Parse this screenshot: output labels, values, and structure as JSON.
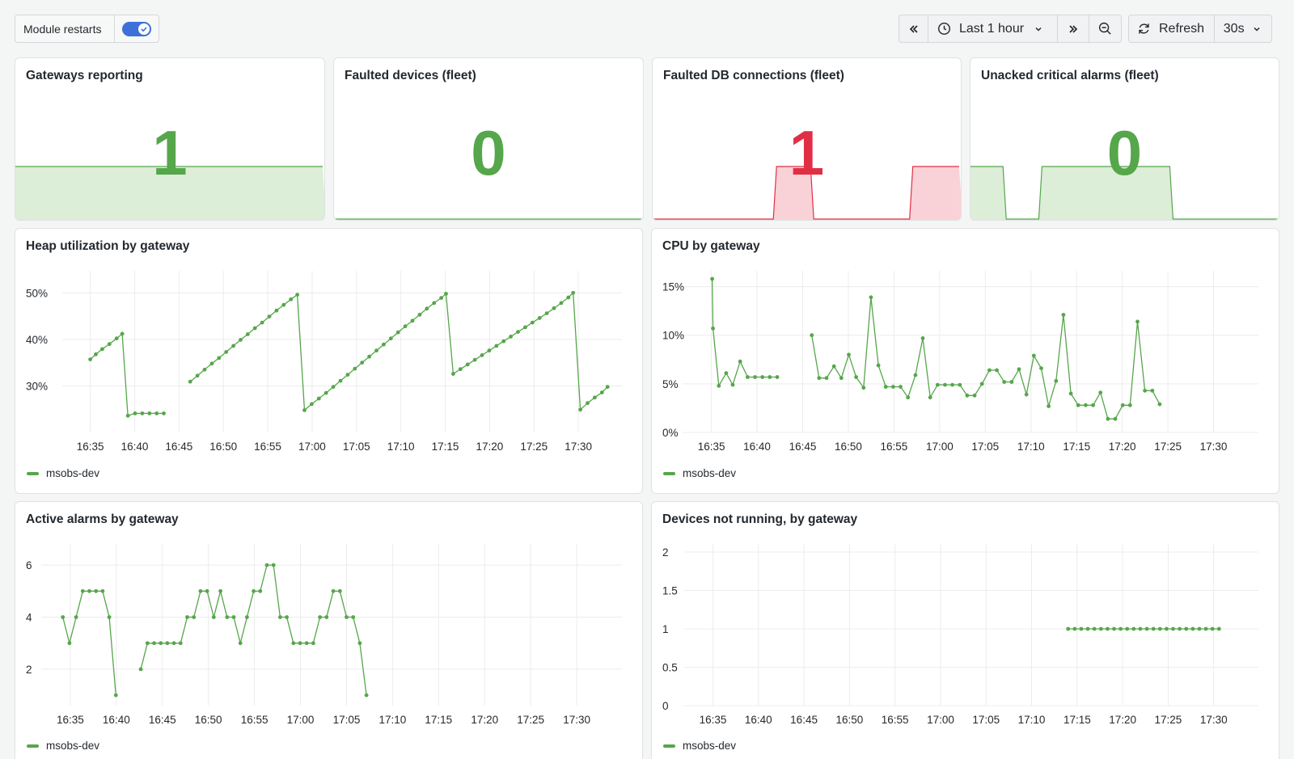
{
  "toolbar": {
    "module_restarts_label": "Module restarts",
    "module_restarts_on": true,
    "time_range_label": "Last 1 hour",
    "refresh_label": "Refresh",
    "refresh_interval": "30s"
  },
  "colors": {
    "green": "#56a64b",
    "red": "#e02f44",
    "green_fill": "#dcedd8",
    "red_fill": "#f9d2d8"
  },
  "stats": [
    {
      "title": "Gateways reporting",
      "value": "1",
      "color": "green",
      "spark": [
        1,
        1,
        1,
        1,
        1,
        1,
        1,
        1,
        1,
        1,
        1,
        1,
        1,
        1,
        1,
        1,
        1,
        1,
        1,
        1
      ]
    },
    {
      "title": "Faulted devices (fleet)",
      "value": "0",
      "color": "green",
      "spark": [
        0,
        0,
        0,
        0,
        0,
        0,
        0,
        0,
        0,
        0,
        0,
        0,
        0,
        0,
        0,
        0,
        0,
        0,
        0,
        0
      ]
    },
    {
      "title": "Faulted DB connections (fleet)",
      "value": "1",
      "color": "red",
      "spark": [
        0,
        0,
        0,
        0,
        0,
        0,
        0,
        0,
        0,
        0,
        1,
        1,
        1,
        0,
        0,
        0,
        0,
        0,
        0,
        0,
        0,
        1,
        1,
        1,
        1
      ]
    },
    {
      "title": "Unacked critical alarms (fleet)",
      "value": "0",
      "color": "green",
      "spark": [
        1,
        1,
        1,
        0,
        0,
        0,
        1,
        1,
        1,
        1,
        1,
        1,
        1,
        1,
        1,
        1,
        1,
        0,
        0,
        0,
        0,
        0,
        0,
        0,
        0,
        0
      ]
    }
  ],
  "chart_data": [
    {
      "type": "line",
      "title": "Heap utilization by gateway",
      "x_ticks": [
        "16:35",
        "16:40",
        "16:45",
        "16:50",
        "16:55",
        "17:00",
        "17:05",
        "17:10",
        "17:15",
        "17:20",
        "17:25",
        "17:30"
      ],
      "y_ticks": [
        "50%",
        "40%",
        "30%"
      ],
      "ylim": [
        20,
        53
      ],
      "series": [
        {
          "name": "msobs-dev",
          "color": "green",
          "segments": [
            [
              [
                33.5,
                35.7
              ],
              [
                34.2,
                36.8
              ],
              [
                35.0,
                37.9
              ],
              [
                35.9,
                39.0
              ],
              [
                36.8,
                40.2
              ],
              [
                37.5,
                41.2
              ],
              [
                38.2,
                23.6
              ],
              [
                39.1,
                24.1
              ],
              [
                40.0,
                24.1
              ],
              [
                40.9,
                24.1
              ],
              [
                41.8,
                24.1
              ],
              [
                42.7,
                24.1
              ]
            ],
            [
              [
                46.0,
                30.9
              ],
              [
                46.9,
                32.2
              ],
              [
                47.8,
                33.5
              ],
              [
                48.7,
                34.8
              ],
              [
                49.6,
                36.0
              ],
              [
                50.5,
                37.3
              ],
              [
                51.4,
                38.6
              ],
              [
                52.3,
                39.9
              ],
              [
                53.2,
                41.1
              ],
              [
                54.1,
                42.4
              ],
              [
                55.0,
                43.6
              ],
              [
                55.9,
                44.9
              ],
              [
                56.8,
                46.2
              ],
              [
                57.7,
                47.4
              ],
              [
                58.6,
                48.6
              ],
              [
                59.4,
                49.6
              ],
              [
                60.3,
                24.8
              ],
              [
                61.2,
                26.1
              ],
              [
                62.1,
                27.3
              ],
              [
                63.0,
                28.5
              ],
              [
                63.9,
                29.8
              ],
              [
                64.8,
                31.1
              ],
              [
                65.7,
                32.4
              ],
              [
                66.6,
                33.7
              ],
              [
                67.5,
                35.0
              ],
              [
                68.4,
                36.3
              ],
              [
                69.3,
                37.6
              ],
              [
                70.2,
                38.9
              ],
              [
                71.1,
                40.2
              ],
              [
                72.0,
                41.5
              ],
              [
                72.9,
                42.8
              ],
              [
                73.8,
                44.0
              ],
              [
                74.7,
                45.3
              ],
              [
                75.6,
                46.6
              ],
              [
                76.5,
                47.8
              ],
              [
                77.4,
                48.9
              ],
              [
                78.0,
                49.8
              ],
              [
                78.9,
                32.6
              ],
              [
                79.8,
                33.6
              ],
              [
                80.7,
                34.6
              ],
              [
                81.6,
                35.6
              ],
              [
                82.5,
                36.6
              ],
              [
                83.4,
                37.6
              ],
              [
                84.3,
                38.6
              ],
              [
                85.2,
                39.6
              ],
              [
                86.1,
                40.6
              ],
              [
                87.0,
                41.6
              ],
              [
                87.9,
                42.6
              ],
              [
                88.8,
                43.6
              ],
              [
                89.7,
                44.6
              ],
              [
                90.6,
                45.6
              ],
              [
                91.5,
                46.7
              ],
              [
                92.4,
                47.8
              ],
              [
                93.3,
                49.0
              ],
              [
                93.9,
                50.0
              ],
              [
                94.8,
                24.9
              ],
              [
                95.7,
                26.3
              ],
              [
                96.6,
                27.5
              ],
              [
                97.5,
                28.6
              ],
              [
                98.2,
                29.8
              ]
            ]
          ]
        }
      ]
    },
    {
      "type": "line",
      "title": "CPU by gateway",
      "x_ticks": [
        "16:35",
        "16:40",
        "16:45",
        "16:50",
        "16:55",
        "17:00",
        "17:05",
        "17:10",
        "17:15",
        "17:20",
        "17:25",
        "17:30"
      ],
      "y_ticks": [
        "15%",
        "10%",
        "5%",
        "0%"
      ],
      "ylim": [
        0,
        15.8
      ],
      "series": [
        {
          "name": "msobs-dev",
          "color": "green",
          "segments": [
            [
              [
                33.6,
                15.8
              ],
              [
                33.7,
                10.7
              ],
              [
                34.4,
                4.8
              ],
              [
                35.3,
                6.1
              ],
              [
                36.1,
                4.9
              ],
              [
                37.0,
                7.3
              ],
              [
                37.9,
                5.7
              ],
              [
                38.8,
                5.7
              ],
              [
                39.7,
                5.7
              ],
              [
                40.6,
                5.7
              ],
              [
                41.5,
                5.7
              ]
            ],
            [
              [
                45.7,
                10.0
              ],
              [
                46.6,
                5.6
              ],
              [
                47.5,
                5.6
              ],
              [
                48.4,
                6.8
              ],
              [
                49.3,
                5.6
              ],
              [
                50.2,
                8.0
              ],
              [
                51.1,
                5.7
              ],
              [
                52.0,
                4.6
              ],
              [
                52.9,
                13.9
              ],
              [
                53.8,
                6.9
              ],
              [
                54.7,
                4.7
              ],
              [
                55.6,
                4.7
              ],
              [
                56.5,
                4.7
              ],
              [
                57.4,
                3.6
              ],
              [
                58.3,
                5.9
              ],
              [
                59.2,
                9.7
              ],
              [
                60.1,
                3.6
              ],
              [
                61.0,
                4.9
              ],
              [
                61.9,
                4.9
              ],
              [
                62.8,
                4.9
              ],
              [
                63.7,
                4.9
              ],
              [
                64.6,
                3.8
              ],
              [
                65.5,
                3.8
              ],
              [
                66.4,
                5.0
              ],
              [
                67.3,
                6.4
              ],
              [
                68.2,
                6.4
              ],
              [
                69.1,
                5.2
              ],
              [
                70.0,
                5.2
              ],
              [
                70.9,
                6.5
              ],
              [
                71.8,
                3.9
              ],
              [
                72.7,
                7.9
              ],
              [
                73.6,
                6.6
              ],
              [
                74.5,
                2.7
              ],
              [
                75.4,
                5.3
              ],
              [
                76.3,
                12.1
              ],
              [
                77.2,
                4.0
              ],
              [
                78.1,
                2.8
              ],
              [
                79.0,
                2.8
              ],
              [
                79.9,
                2.8
              ],
              [
                80.8,
                4.1
              ],
              [
                81.7,
                1.4
              ],
              [
                82.6,
                1.4
              ],
              [
                83.5,
                2.8
              ],
              [
                84.4,
                2.8
              ],
              [
                85.3,
                11.4
              ],
              [
                86.2,
                4.3
              ],
              [
                87.1,
                4.3
              ],
              [
                88.0,
                2.9
              ]
            ]
          ]
        }
      ]
    },
    {
      "type": "line",
      "title": "Active alarms by gateway",
      "x_ticks": [
        "16:35",
        "16:40",
        "16:45",
        "16:50",
        "16:55",
        "17:00",
        "17:05",
        "17:10",
        "17:15",
        "17:20",
        "17:25",
        "17:30"
      ],
      "y_ticks": [
        "6",
        "4",
        "2"
      ],
      "ylim": [
        0.6,
        6.5
      ],
      "series": [
        {
          "name": "msobs-dev",
          "color": "green",
          "segments": [
            [
              [
                32.6,
                4
              ],
              [
                33.4,
                3
              ],
              [
                34.2,
                4
              ],
              [
                35.0,
                5
              ],
              [
                35.8,
                5
              ],
              [
                36.6,
                5
              ],
              [
                37.4,
                5
              ],
              [
                38.2,
                4
              ],
              [
                39.0,
                1
              ]
            ],
            [
              [
                42.0,
                2
              ],
              [
                42.8,
                3
              ],
              [
                43.6,
                3
              ],
              [
                44.4,
                3
              ],
              [
                45.2,
                3
              ],
              [
                46.0,
                3
              ],
              [
                46.8,
                3
              ],
              [
                47.6,
                4
              ],
              [
                48.4,
                4
              ],
              [
                49.2,
                5
              ],
              [
                50.0,
                5
              ],
              [
                50.8,
                4
              ],
              [
                51.6,
                5
              ],
              [
                52.4,
                4
              ],
              [
                53.2,
                4
              ],
              [
                54.0,
                3
              ],
              [
                54.8,
                4
              ],
              [
                55.6,
                5
              ],
              [
                56.4,
                5
              ],
              [
                57.2,
                6
              ],
              [
                58.0,
                6
              ],
              [
                58.8,
                4
              ],
              [
                59.6,
                4
              ],
              [
                60.4,
                3
              ],
              [
                61.2,
                3
              ],
              [
                62.0,
                3
              ],
              [
                62.8,
                3
              ],
              [
                63.6,
                4
              ],
              [
                64.4,
                4
              ],
              [
                65.2,
                5
              ],
              [
                66.0,
                5
              ],
              [
                66.8,
                4
              ],
              [
                67.6,
                4
              ],
              [
                68.4,
                3
              ],
              [
                69.2,
                1
              ]
            ]
          ]
        }
      ]
    },
    {
      "type": "line",
      "title": "Devices not running, by gateway",
      "x_ticks": [
        "16:35",
        "16:40",
        "16:45",
        "16:50",
        "16:55",
        "17:00",
        "17:05",
        "17:10",
        "17:15",
        "17:20",
        "17:25",
        "17:30"
      ],
      "y_ticks": [
        "2",
        "1.5",
        "1",
        "0.5",
        "0"
      ],
      "ylim": [
        0,
        2
      ],
      "series": [
        {
          "name": "msobs-dev",
          "color": "green",
          "segments": [
            [
              [
                76.8,
                1
              ],
              [
                77.6,
                1
              ],
              [
                78.4,
                1
              ],
              [
                79.2,
                1
              ],
              [
                80.0,
                1
              ],
              [
                80.8,
                1
              ],
              [
                81.6,
                1
              ],
              [
                82.4,
                1
              ],
              [
                83.2,
                1
              ],
              [
                84.0,
                1
              ],
              [
                84.8,
                1
              ],
              [
                85.6,
                1
              ],
              [
                86.4,
                1
              ],
              [
                87.2,
                1
              ],
              [
                88.0,
                1
              ],
              [
                88.8,
                1
              ],
              [
                89.6,
                1
              ],
              [
                90.4,
                1
              ],
              [
                91.2,
                1
              ],
              [
                92.0,
                1
              ],
              [
                92.8,
                1
              ],
              [
                93.6,
                1
              ],
              [
                94.4,
                1
              ],
              [
                95.2,
                1
              ]
            ]
          ]
        }
      ]
    }
  ]
}
